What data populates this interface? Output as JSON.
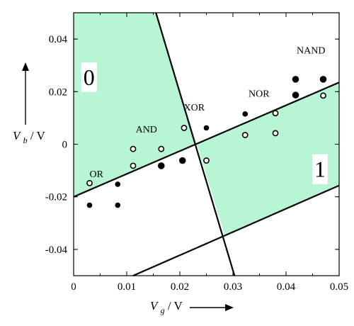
{
  "chart_data": {
    "type": "scatter",
    "title": "",
    "xlabel": {
      "main": "V",
      "sub": "g",
      "unit": " / V"
    },
    "ylabel": {
      "main": "V",
      "sub": "b",
      "unit": " / V"
    },
    "xlim": [
      0,
      0.05
    ],
    "ylim": [
      -0.05,
      0.05
    ],
    "x_ticks": [
      "0",
      "0.01",
      "0.02",
      "0.03",
      "0.04",
      "0.05"
    ],
    "y_ticks": [
      "-0.04",
      "-0.02",
      "0",
      "0.02",
      "0.04"
    ],
    "grid": false,
    "colors": {
      "region_fill": "#b7f5d5",
      "line": "#000000",
      "marker": "#000000"
    },
    "regions": [
      {
        "label": "0",
        "polygon": [
          [
            0,
            0.05
          ],
          [
            0.0155,
            0.05
          ],
          [
            0.0232,
            0.0
          ],
          [
            0,
            -0.02
          ]
        ]
      },
      {
        "label": "1",
        "polygon": [
          [
            0.0232,
            0.0
          ],
          [
            0.05,
            0.0235
          ],
          [
            0.05,
            -0.0157
          ],
          [
            0.0285,
            -0.035
          ]
        ]
      }
    ],
    "boundary_lines": [
      {
        "from": [
          0,
          -0.02
        ],
        "to": [
          0.05,
          0.0235
        ]
      },
      {
        "from": [
          0.0155,
          0.05
        ],
        "to": [
          0.0303,
          -0.05
        ]
      },
      {
        "from": [
          0.0112,
          -0.05
        ],
        "to": [
          0.05,
          -0.0157
        ]
      }
    ],
    "filled_points": [
      {
        "x": 0.003,
        "y": -0.0232,
        "size": "small"
      },
      {
        "x": 0.0083,
        "y": -0.0152,
        "size": "small"
      },
      {
        "x": 0.0083,
        "y": -0.0232,
        "size": "small"
      },
      {
        "x": 0.0165,
        "y": -0.0082,
        "size": "large"
      },
      {
        "x": 0.0205,
        "y": -0.0062,
        "size": "large"
      },
      {
        "x": 0.025,
        "y": 0.0062,
        "size": "small"
      },
      {
        "x": 0.0323,
        "y": 0.0115,
        "size": "small"
      },
      {
        "x": 0.0418,
        "y": 0.0187,
        "size": "large"
      },
      {
        "x": 0.0418,
        "y": 0.0247,
        "size": "large"
      },
      {
        "x": 0.047,
        "y": 0.0247,
        "size": "large"
      }
    ],
    "open_points": [
      {
        "x": 0.003,
        "y": -0.0148
      },
      {
        "x": 0.0112,
        "y": -0.0018
      },
      {
        "x": 0.0112,
        "y": -0.0082
      },
      {
        "x": 0.0165,
        "y": -0.0018
      },
      {
        "x": 0.0208,
        "y": 0.0062
      },
      {
        "x": 0.025,
        "y": -0.0062
      },
      {
        "x": 0.0323,
        "y": 0.0035
      },
      {
        "x": 0.038,
        "y": 0.0118
      },
      {
        "x": 0.038,
        "y": 0.0042
      },
      {
        "x": 0.047,
        "y": 0.0185
      }
    ],
    "annotations": [
      {
        "text": "OR",
        "x": 0.0043,
        "y": -0.0125
      },
      {
        "text": "AND",
        "x": 0.0137,
        "y": 0.0045
      },
      {
        "text": "XOR",
        "x": 0.0227,
        "y": 0.0128
      },
      {
        "text": "NOR",
        "x": 0.0349,
        "y": 0.018
      },
      {
        "text": "NAND",
        "x": 0.0447,
        "y": 0.0345
      }
    ],
    "region_labels": [
      {
        "text": "0",
        "x": 0.0029,
        "y": 0.0255
      },
      {
        "text": "1",
        "x": 0.0464,
        "y": -0.0095
      }
    ]
  }
}
